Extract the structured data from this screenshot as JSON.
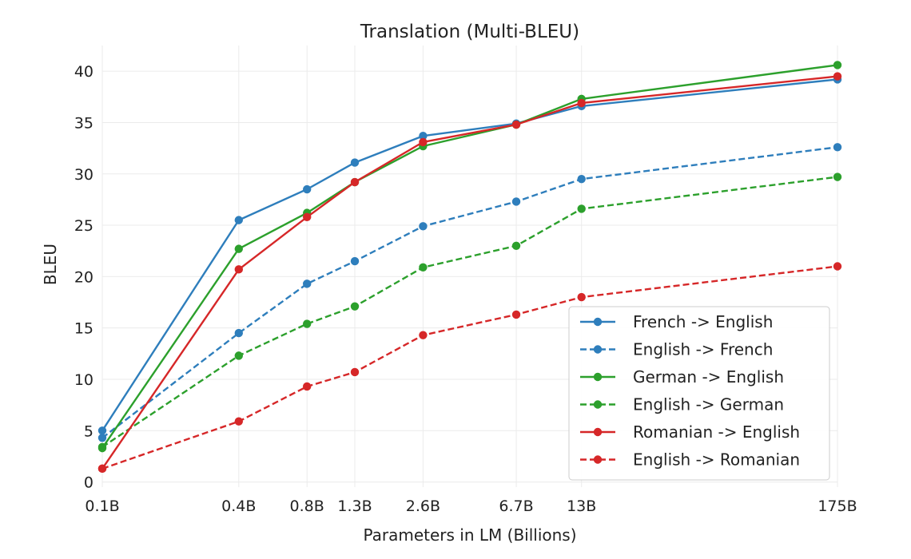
{
  "chart_data": {
    "type": "line",
    "title": "Translation (Multi-BLEU)",
    "xlabel": "Parameters in LM (Billions)",
    "ylabel": "BLEU",
    "x_scale": "log",
    "x": [
      0.1,
      0.4,
      0.8,
      1.3,
      2.6,
      6.7,
      13,
      175
    ],
    "x_tick_labels": [
      "0.1B",
      "0.4B",
      "0.8B",
      "1.3B",
      "2.6B",
      "6.7B",
      "13B",
      "175B"
    ],
    "y_ticks": [
      0,
      5,
      10,
      15,
      20,
      25,
      30,
      35,
      40
    ],
    "ylim": [
      -0.5,
      42.5
    ],
    "grid": true,
    "legend_position": "bottom-right",
    "series": [
      {
        "name": "French -> English",
        "color": "#2e7ebc",
        "dashed": false,
        "values": [
          5.0,
          25.5,
          28.5,
          31.1,
          33.7,
          34.9,
          36.6,
          39.2
        ]
      },
      {
        "name": "English -> French",
        "color": "#2e7ebc",
        "dashed": true,
        "values": [
          4.3,
          14.5,
          19.3,
          21.5,
          24.9,
          27.3,
          29.5,
          32.6
        ]
      },
      {
        "name": "German -> English",
        "color": "#2ca02c",
        "dashed": false,
        "values": [
          3.3,
          22.7,
          26.2,
          29.2,
          32.7,
          34.8,
          37.3,
          40.6
        ]
      },
      {
        "name": "English -> German",
        "color": "#2ca02c",
        "dashed": true,
        "values": [
          3.4,
          12.3,
          15.4,
          17.1,
          20.9,
          23.0,
          26.6,
          29.7
        ]
      },
      {
        "name": "Romanian -> English",
        "color": "#d62728",
        "dashed": false,
        "values": [
          1.3,
          20.7,
          25.8,
          29.2,
          33.1,
          34.8,
          36.9,
          39.5
        ]
      },
      {
        "name": "English -> Romanian",
        "color": "#d62728",
        "dashed": true,
        "values": [
          1.3,
          5.9,
          9.3,
          10.7,
          14.3,
          16.3,
          18.0,
          21.0
        ]
      }
    ]
  }
}
